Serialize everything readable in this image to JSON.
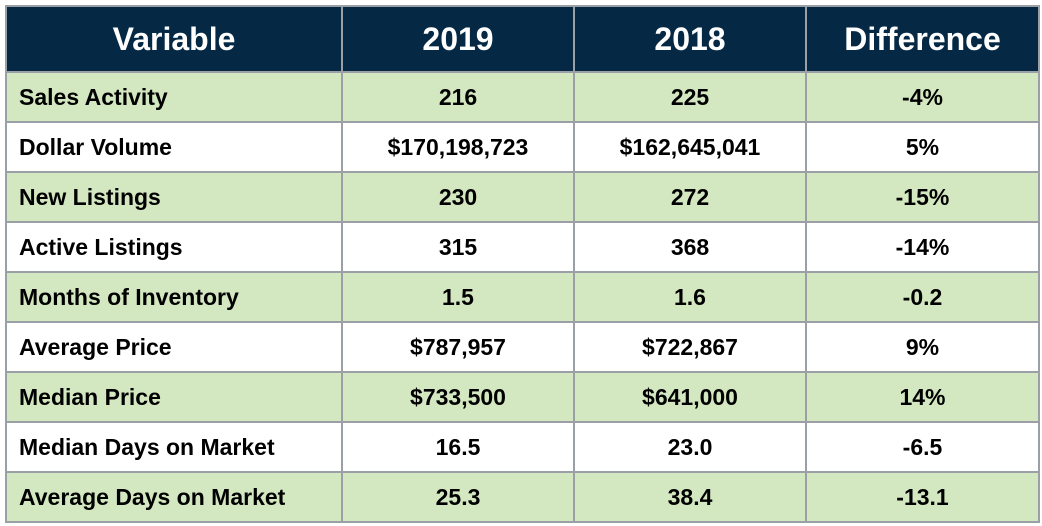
{
  "chart_data": {
    "type": "table",
    "columns": [
      "Variable",
      "2019",
      "2018",
      "Difference"
    ],
    "rows": [
      [
        "Sales Activity",
        "216",
        "225",
        "-4%"
      ],
      [
        "Dollar Volume",
        "$170,198,723",
        "$162,645,041",
        "5%"
      ],
      [
        "New Listings",
        "230",
        "272",
        "-15%"
      ],
      [
        "Active Listings",
        "315",
        "368",
        "-14%"
      ],
      [
        "Months of Inventory",
        "1.5",
        "1.6",
        "-0.2"
      ],
      [
        "Average Price",
        "$787,957",
        "$722,867",
        "9%"
      ],
      [
        "Median Price",
        "$733,500",
        "$641,000",
        "14%"
      ],
      [
        "Median Days on Market",
        "16.5",
        "23.0",
        "-6.5"
      ],
      [
        "Average Days on Market",
        "25.3",
        "38.4",
        "-13.1"
      ]
    ]
  },
  "colors": {
    "header_bg": "#052945",
    "header_text": "#ffffff",
    "row_band": "#d3e8c0",
    "row_plain": "#ffffff",
    "grid": "#9aa0a6"
  }
}
